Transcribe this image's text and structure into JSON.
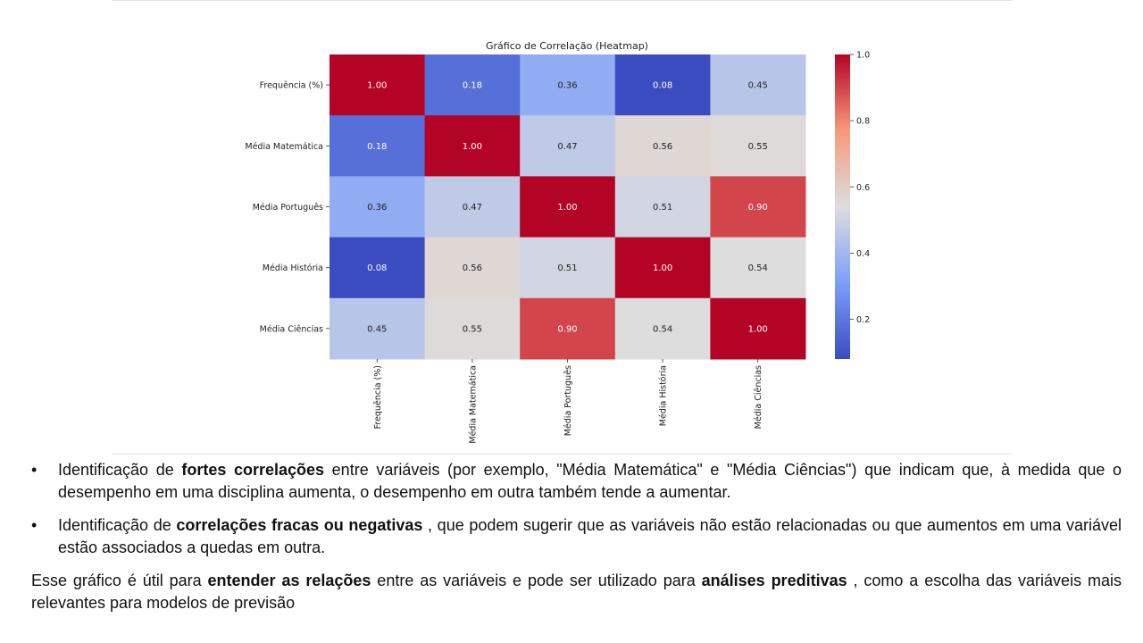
{
  "chart_data": {
    "type": "heatmap",
    "title": "Gráfico de Correlação (Heatmap)",
    "rows": [
      "Frequência (%)",
      "Média Matemática",
      "Média Português",
      "Média História",
      "Média Ciências"
    ],
    "columns": [
      "Frequência (%)",
      "Média Matemática",
      "Média Português",
      "Média História",
      "Média Ciências"
    ],
    "values": [
      [
        1.0,
        0.18,
        0.36,
        0.08,
        0.45
      ],
      [
        0.18,
        1.0,
        0.47,
        0.56,
        0.55
      ],
      [
        0.36,
        0.47,
        1.0,
        0.51,
        0.9
      ],
      [
        0.08,
        0.56,
        0.51,
        1.0,
        0.54
      ],
      [
        0.45,
        0.55,
        0.9,
        0.54,
        1.0
      ]
    ],
    "colorbar": {
      "colormap": "coolwarm",
      "range": [
        0.08,
        1.0
      ],
      "ticks": [
        0.2,
        0.4,
        0.6,
        0.8,
        1.0
      ],
      "tick_labels": [
        "0.2",
        "0.4",
        "0.6",
        "0.8",
        "1.0"
      ]
    },
    "annotation_format": "0.00"
  },
  "text": {
    "bullet_1": {
      "marker": "•",
      "pre": "Identificação de ",
      "bold": "fortes correlações",
      "post": " entre variáveis (por exemplo, \"Média Matemática\" e \"Média Ciências\") que indicam que, à medida que o desempenho em uma disciplina aumenta, o desempenho em outra também tende a aumentar."
    },
    "bullet_2": {
      "marker": "•",
      "pre": "Identificação de ",
      "bold": "correlações fracas ou negativas",
      "post": " , que podem sugerir que as variáveis não estão relacionadas ou que aumentos em uma variável estão associados a quedas em outra."
    },
    "summary": {
      "pre": "Esse gráfico é útil para ",
      "bold_1": "entender as relações",
      "mid": " entre as variáveis e pode ser utilizado para ",
      "bold_2": "análises preditivas",
      "post": " , como a escolha das variáveis mais relevantes para modelos de previsão"
    }
  }
}
